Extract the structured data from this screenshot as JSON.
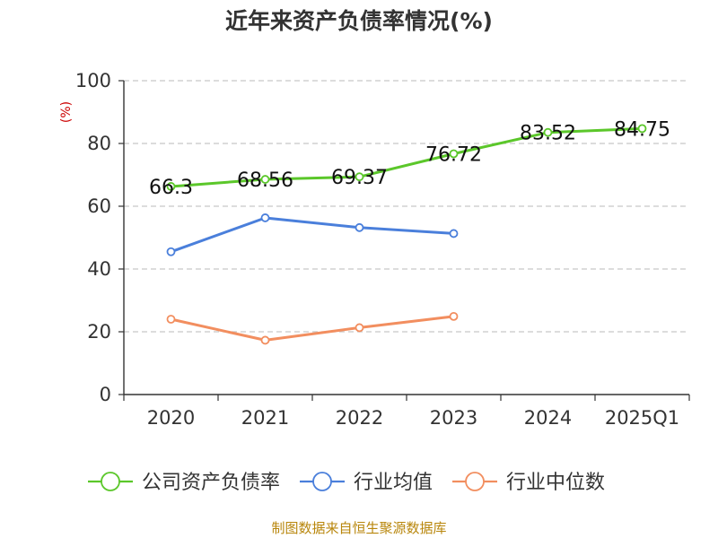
{
  "chart_data": {
    "type": "line",
    "title": "近年来资产负债率情况(%)",
    "ylabel": "(%)",
    "categories": [
      "2020",
      "2021",
      "2022",
      "2023",
      "2024",
      "2025Q1"
    ],
    "ylim": [
      0,
      100
    ],
    "yticks": [
      0,
      20,
      40,
      60,
      80,
      100
    ],
    "grid": true,
    "legend_position": "bottom",
    "series": [
      {
        "name": "公司资产负债率",
        "color": "#5bc72a",
        "values": [
          66.3,
          68.56,
          69.37,
          76.72,
          83.52,
          84.75
        ],
        "labels": [
          "66.3",
          "68.56",
          "69.37",
          "76.72",
          "83.52",
          "84.75"
        ]
      },
      {
        "name": "行业均值",
        "color": "#4a7fdb",
        "values": [
          45.5,
          56.3,
          53.2,
          51.3,
          null,
          null
        ]
      },
      {
        "name": "行业中位数",
        "color": "#f28e5f",
        "values": [
          24.0,
          17.3,
          21.3,
          24.9,
          null,
          null
        ]
      }
    ]
  },
  "source": "制图数据来自恒生聚源数据库"
}
